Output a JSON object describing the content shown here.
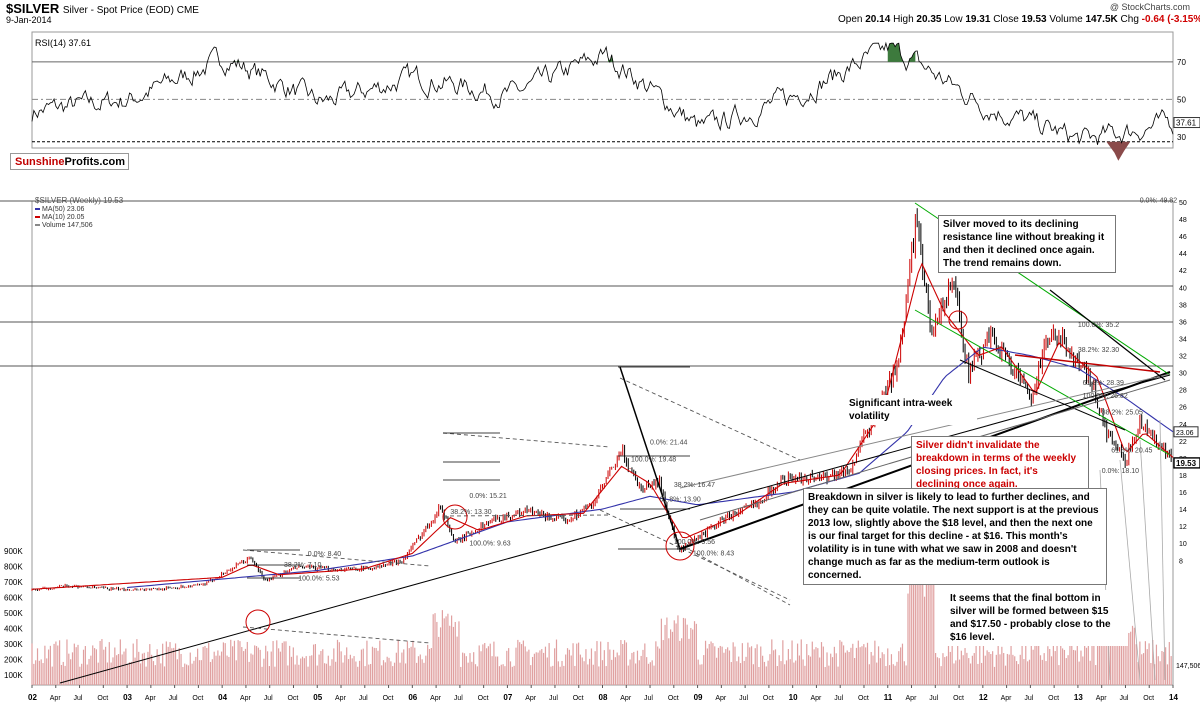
{
  "header": {
    "symbol": "$SILVER",
    "name": "Silver - Spot Price (EOD) CME",
    "date": "9-Jan-2014",
    "credit": "@ StockCharts.com",
    "open_label": "Open",
    "open": "20.14",
    "high_label": "High",
    "high": "20.35",
    "low_label": "Low",
    "low": "19.31",
    "close_label": "Close",
    "close": "19.53",
    "volume_label": "Volume",
    "volume": "147.5K",
    "chg_label": "Chg",
    "chg": "-0.64 (-3.15%)"
  },
  "logo": {
    "part1": "Sunshine",
    "part2": "Profits.com"
  },
  "colors": {
    "price": "#000000",
    "up": "#cc0000",
    "down": "#000000",
    "ma50": "#3333aa",
    "ma10": "#cc0000",
    "volume": "#e0a0a0",
    "rsi_over": "#3d7a3d",
    "rsi_under": "#8a4a4a",
    "resistance": "#00aa00"
  },
  "chart_data": [
    {
      "type": "line",
      "panel": "rsi",
      "title": "RSI(14) 37.61",
      "y_ticks": [
        30,
        50,
        70
      ],
      "ylim": [
        24,
        86
      ],
      "overbought": 70,
      "oversold": 30,
      "last_value": "37.61",
      "x": [
        "2002",
        "2003",
        "2004",
        "2005",
        "2006",
        "2007",
        "2008",
        "2009",
        "2010",
        "2011",
        "2012",
        "2013",
        "2014"
      ],
      "values": [
        44,
        50,
        72,
        48,
        62,
        52,
        74,
        34,
        52,
        78,
        46,
        28,
        38
      ]
    },
    {
      "type": "line",
      "panel": "price",
      "title": "$SILVER (Weekly) 19.53",
      "legend": [
        "MA(50) 23.06",
        "MA(10) 20.05",
        "Volume 147,506"
      ],
      "y_ticks": [
        8,
        10,
        12,
        14,
        16,
        18,
        20,
        22,
        24,
        26,
        28,
        30,
        32,
        34,
        36,
        38,
        40,
        42,
        44,
        46,
        48,
        50
      ],
      "ylim": [
        6.5,
        50
      ],
      "last_close": "19.53",
      "ma50_label": "23.06",
      "ma10_label": "20.05",
      "x_labels": [
        "02",
        "Apr",
        "Jul",
        "Oct",
        "03",
        "Apr",
        "Jul",
        "Oct",
        "04",
        "Apr",
        "Jul",
        "Oct",
        "05",
        "Apr",
        "Jul",
        "Oct",
        "06",
        "Apr",
        "Jul",
        "Oct",
        "07",
        "Apr",
        "Jul",
        "Oct",
        "08",
        "Apr",
        "Jul",
        "Oct",
        "09",
        "Apr",
        "Jul",
        "Oct",
        "10",
        "Apr",
        "Jul",
        "Oct",
        "11",
        "Apr",
        "Jul",
        "Oct",
        "12",
        "Apr",
        "Jul",
        "Oct",
        "13",
        "Apr",
        "Jul",
        "Oct",
        "14"
      ],
      "price_anchors": [
        [
          2002.0,
          4.5
        ],
        [
          2002.4,
          5.0
        ],
        [
          2002.9,
          4.6
        ],
        [
          2003.3,
          4.6
        ],
        [
          2003.8,
          5.1
        ],
        [
          2004.0,
          6.4
        ],
        [
          2004.3,
          8.3
        ],
        [
          2004.45,
          5.6
        ],
        [
          2004.8,
          7.2
        ],
        [
          2005.2,
          6.9
        ],
        [
          2005.6,
          7.1
        ],
        [
          2005.9,
          8.0
        ],
        [
          2006.3,
          14.3
        ],
        [
          2006.45,
          10.0
        ],
        [
          2006.8,
          12.5
        ],
        [
          2007.2,
          13.8
        ],
        [
          2007.6,
          12.6
        ],
        [
          2007.9,
          14.6
        ],
        [
          2008.2,
          20.7
        ],
        [
          2008.4,
          16.5
        ],
        [
          2008.6,
          17.2
        ],
        [
          2008.8,
          9.0
        ],
        [
          2008.95,
          10.2
        ],
        [
          2009.3,
          13.0
        ],
        [
          2009.6,
          14.5
        ],
        [
          2009.9,
          17.5
        ],
        [
          2010.3,
          17.8
        ],
        [
          2010.6,
          18.5
        ],
        [
          2010.9,
          26.0
        ],
        [
          2011.1,
          30.5
        ],
        [
          2011.3,
          48.0
        ],
        [
          2011.45,
          35.0
        ],
        [
          2011.7,
          40.5
        ],
        [
          2011.85,
          30.0
        ],
        [
          2012.1,
          34.5
        ],
        [
          2012.5,
          27.0
        ],
        [
          2012.7,
          34.5
        ],
        [
          2012.9,
          33.0
        ],
        [
          2013.15,
          28.5
        ],
        [
          2013.3,
          23.0
        ],
        [
          2013.5,
          19.5
        ],
        [
          2013.65,
          24.5
        ],
        [
          2013.85,
          21.5
        ],
        [
          2014.0,
          19.53
        ]
      ],
      "ma50_anchors": [
        [
          2003.0,
          4.8
        ],
        [
          2005.0,
          6.8
        ],
        [
          2006.0,
          8.5
        ],
        [
          2007.0,
          12.5
        ],
        [
          2008.0,
          14.0
        ],
        [
          2008.5,
          15.5
        ],
        [
          2009.0,
          14.5
        ],
        [
          2010.0,
          16.0
        ],
        [
          2010.7,
          18.2
        ],
        [
          2011.2,
          23.0
        ],
        [
          2011.6,
          29.5
        ],
        [
          2012.0,
          33.0
        ],
        [
          2012.5,
          32.0
        ],
        [
          2013.0,
          30.5
        ],
        [
          2013.5,
          27.0
        ],
        [
          2014.0,
          23.06
        ]
      ],
      "ma10_anchors": [
        [
          2002.0,
          4.6
        ],
        [
          2004.0,
          6.0
        ],
        [
          2004.3,
          7.5
        ],
        [
          2004.6,
          6.3
        ],
        [
          2005.5,
          7.0
        ],
        [
          2006.0,
          8.8
        ],
        [
          2006.4,
          13.0
        ],
        [
          2006.7,
          11.5
        ],
        [
          2007.2,
          13.2
        ],
        [
          2007.8,
          13.5
        ],
        [
          2008.2,
          19.0
        ],
        [
          2008.5,
          17.0
        ],
        [
          2008.85,
          10.5
        ],
        [
          2009.4,
          13.2
        ],
        [
          2009.9,
          17.0
        ],
        [
          2010.5,
          18.0
        ],
        [
          2010.95,
          25.5
        ],
        [
          2011.35,
          43.0
        ],
        [
          2011.6,
          37.0
        ],
        [
          2011.95,
          32.0
        ],
        [
          2012.2,
          33.0
        ],
        [
          2012.55,
          27.5
        ],
        [
          2012.8,
          33.5
        ],
        [
          2013.2,
          29.5
        ],
        [
          2013.5,
          20.5
        ],
        [
          2013.7,
          23.0
        ],
        [
          2014.0,
          20.05
        ]
      ],
      "fib_labels": [
        {
          "text": "0.0%: 49.82",
          "x": 2013.65,
          "y": 49.82
        },
        {
          "text": "100.0%: 35.2",
          "x": 2013.0,
          "y": 35.2
        },
        {
          "text": "38.2%: 32.30",
          "x": 2013.0,
          "y": 32.3
        },
        {
          "text": "61.8%: 28.39",
          "x": 2013.05,
          "y": 28.4
        },
        {
          "text": "100.0%: 26.82",
          "x": 2013.05,
          "y": 26.9
        },
        {
          "text": "38.2%: 25.05",
          "x": 2013.25,
          "y": 25.0
        },
        {
          "text": "61.8%: 20.45",
          "x": 2013.35,
          "y": 20.5
        },
        {
          "text": "0.0%: 18.10",
          "x": 2013.25,
          "y": 18.1
        },
        {
          "text": "0.0%: 21.44",
          "x": 2008.5,
          "y": 21.44
        },
        {
          "text": "100.0%: 19.48",
          "x": 2008.3,
          "y": 19.48
        },
        {
          "text": "38.2%: 16.47",
          "x": 2008.75,
          "y": 16.47
        },
        {
          "text": "61.8%: 13.90",
          "x": 2008.6,
          "y": 14.8
        },
        {
          "text": "100.0%: 9.56",
          "x": 2008.75,
          "y": 9.8
        },
        {
          "text": "100.0%: 8.43",
          "x": 2008.95,
          "y": 8.43
        },
        {
          "text": "0.0%: 15.21",
          "x": 2006.6,
          "y": 15.21
        },
        {
          "text": "38.2%: 13.30",
          "x": 2006.4,
          "y": 13.3
        },
        {
          "text": "100.0%: 9.63",
          "x": 2006.6,
          "y": 9.63
        },
        {
          "text": "0.0%: 8.40",
          "x": 2004.9,
          "y": 8.4
        },
        {
          "text": "38.2%: 7.10",
          "x": 2004.65,
          "y": 7.1
        },
        {
          "text": "100.0%: 5.53",
          "x": 2004.8,
          "y": 5.53
        }
      ]
    },
    {
      "type": "bar",
      "panel": "volume",
      "title": "Volume 147,506",
      "y_ticks": [
        "100K",
        "200K",
        "300K",
        "400K",
        "500K",
        "600K",
        "700K",
        "800K",
        "900K"
      ],
      "last_value": "147,506"
    }
  ],
  "annotations": {
    "resistance": "Silver moved to its declining resistance line without breaking it and then it declined once again. The trend remains down.",
    "volatility": "Significant intra-week volatility",
    "breakdown_red": "Silver didn't invalidate the breakdown in terms of the weekly closing prices. In fact, it's declining once again.",
    "breakdown_black": "Breakdown in silver is likely to lead to further declines, and they can be quite volatile. The next support is at the previous 2013 low, slightly above the $18 level, and then the next one is our final target for this decline - at $16. This month's volatility is in tune with what we saw in 2008 and doesn't change much as far as the medium-term outlook is concerned.",
    "final_bottom": "It seems that the final bottom in silver will be formed between $15 and $17.50 - probably close to the $16 level."
  }
}
